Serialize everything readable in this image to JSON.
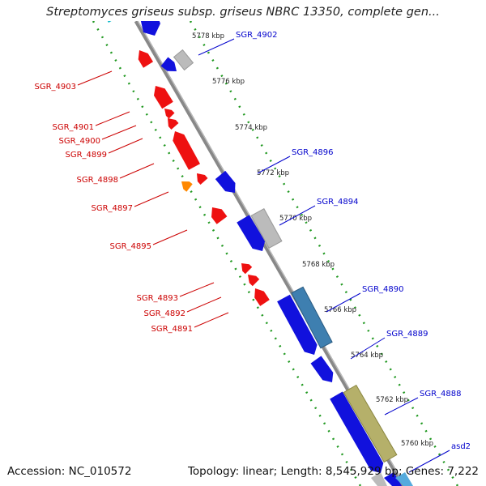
{
  "title": "Streptomyces griseus subsp. griseus NBRC 13350, complete gen...",
  "footer": {
    "accession": "Accession: NC_010572",
    "summary": "Topology: linear; Length: 8,545,929 bp; Genes: 7,222"
  },
  "colors": {
    "minus_strand_gene": "#ee1111",
    "plus_strand_gene": "#1111dd",
    "minus_label": "#cc0000",
    "plus_label": "#0000cc",
    "backbone": "#888888",
    "dotted_guides": "#229922",
    "orange_gene": "#ff8800",
    "pseudo_gene": "#bbbbbb",
    "steelblue_gene": "#3e7fb0",
    "olive_gene": "#b5b06a",
    "cyan_gene": "#11bbcc"
  },
  "scale_ticks": [
    "5778 kbp",
    "5776 kbp",
    "5774 kbp",
    "5772 kbp",
    "5770 kbp",
    "5768 kbp",
    "5766 kbp",
    "5764 kbp",
    "5762 kbp",
    "5760 kbp"
  ],
  "plus_genes": [
    "SGR_4902",
    "SGR_4896",
    "SGR_4894",
    "SGR_4890",
    "SGR_4889",
    "SGR_4888",
    "asd2"
  ],
  "minus_genes": [
    "SGR_4903",
    "SGR_4901",
    "SGR_4900",
    "SGR_4899",
    "SGR_4898",
    "SGR_4897",
    "SGR_4895",
    "SGR_4893",
    "SGR_4892",
    "SGR_4891"
  ]
}
